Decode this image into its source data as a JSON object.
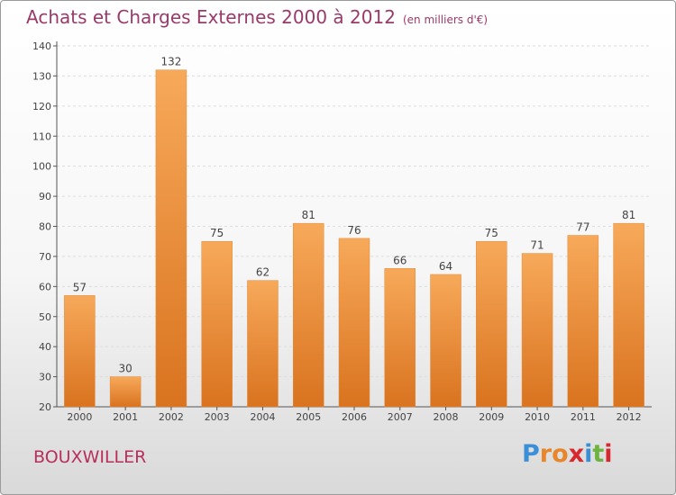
{
  "header": {
    "title": "Achats et Charges Externes 2000 à 2012",
    "subtitle": "(en milliers d'€)"
  },
  "footer": {
    "city": "BOUXWILLER",
    "logo": "Proxiti"
  },
  "colors": {
    "bar_top": "#f7a95a",
    "bar_bottom": "#d9731f",
    "title": "#9a3a6a",
    "city": "#b8305a"
  },
  "chart_data": {
    "type": "bar",
    "title": "Achats et Charges Externes 2000 à 2012",
    "subtitle": "(en milliers d'€)",
    "categories": [
      "2000",
      "2001",
      "2002",
      "2003",
      "2004",
      "2005",
      "2006",
      "2007",
      "2008",
      "2009",
      "2010",
      "2011",
      "2012"
    ],
    "values": [
      57,
      30,
      132,
      75,
      62,
      81,
      76,
      66,
      64,
      75,
      71,
      77,
      81
    ],
    "ylim": [
      20,
      140
    ],
    "yticks": [
      20,
      30,
      40,
      50,
      60,
      70,
      80,
      90,
      100,
      110,
      120,
      130,
      140
    ],
    "grid": true,
    "data_labels": true
  }
}
